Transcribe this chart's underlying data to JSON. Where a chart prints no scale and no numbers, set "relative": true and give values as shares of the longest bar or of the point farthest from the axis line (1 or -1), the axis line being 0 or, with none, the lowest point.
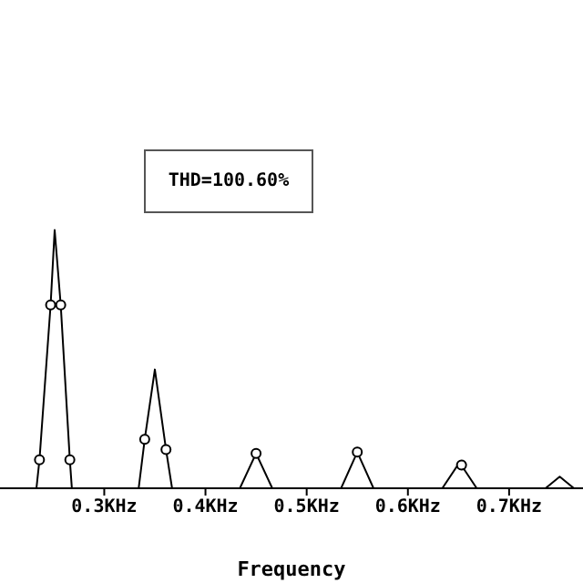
{
  "chart_data": {
    "type": "line",
    "relative": true,
    "xlabel": "Frequency",
    "annotations": [
      "THD=100.60%"
    ],
    "xlim": [
      0.197,
      0.773
    ],
    "xticks": [
      {
        "value": 0.3,
        "label": "0.3KHz"
      },
      {
        "value": 0.4,
        "label": "0.4KHz"
      },
      {
        "value": 0.5,
        "label": "0.5KHz"
      },
      {
        "value": 0.6,
        "label": "0.6KHz"
      },
      {
        "value": 0.7,
        "label": "0.7KHz"
      }
    ],
    "grid": false,
    "series": [
      {
        "color": "#000000",
        "marker": "none",
        "x": [
          0.2,
          0.233,
          0.236,
          0.247,
          0.251,
          0.257,
          0.266,
          0.268,
          0.334,
          0.34,
          0.35,
          0.361,
          0.367,
          0.434,
          0.45,
          0.466,
          0.534,
          0.55,
          0.566,
          0.634,
          0.651,
          0.668,
          0.736,
          0.75,
          0.764,
          0.773
        ],
        "values": [
          0,
          0,
          0.11,
          0.71,
          1,
          0.71,
          0.11,
          0,
          0,
          0.19,
          0.46,
          0.15,
          0,
          0,
          0.135,
          0,
          0,
          0.14,
          0,
          0,
          0.1,
          0,
          0,
          0.045,
          0,
          0
        ]
      },
      {
        "type": "scatter",
        "color": "#000000",
        "marker": "circle",
        "x": [
          0.236,
          0.247,
          0.257,
          0.266,
          0.34,
          0.361,
          0.45,
          0.55,
          0.653
        ],
        "values": [
          0.11,
          0.71,
          0.71,
          0.11,
          0.19,
          0.15,
          0.135,
          0.14,
          0.09
        ]
      }
    ]
  }
}
